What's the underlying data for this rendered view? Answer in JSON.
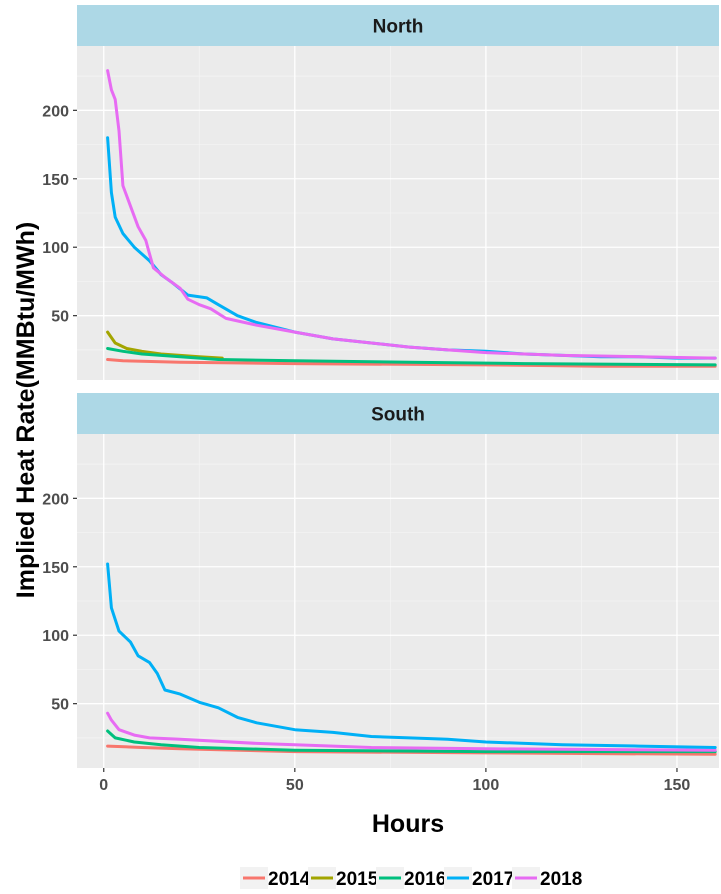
{
  "chart_data": {
    "type": "line",
    "xlabel": "Hours",
    "ylabel": "Implied Heat Rate(MMBtu/MWh)",
    "xlim": [
      -7,
      161
    ],
    "ylim": [
      3,
      247
    ],
    "x_ticks": [
      0,
      50,
      100,
      150
    ],
    "y_ticks": [
      50,
      100,
      150,
      200
    ],
    "grid": true,
    "legend_position": "bottom",
    "series_styles": [
      {
        "name": "2014",
        "color": "#f8766d"
      },
      {
        "name": "2015",
        "color": "#a3a500"
      },
      {
        "name": "2016",
        "color": "#00bf7d"
      },
      {
        "name": "2017",
        "color": "#00b0f6"
      },
      {
        "name": "2018",
        "color": "#e76bf3"
      }
    ],
    "panels": [
      {
        "strip": "North",
        "series": [
          {
            "name": "2014",
            "points": [
              [
                1,
                18
              ],
              [
                5,
                17
              ],
              [
                20,
                16
              ],
              [
                50,
                15
              ],
              [
                100,
                14
              ],
              [
                130,
                13
              ],
              [
                160,
                13
              ]
            ]
          },
          {
            "name": "2015",
            "points": [
              [
                1,
                38
              ],
              [
                3,
                30
              ],
              [
                6,
                26
              ],
              [
                10,
                24
              ],
              [
                15,
                22
              ],
              [
                20,
                21
              ],
              [
                25,
                20
              ],
              [
                31,
                19
              ]
            ]
          },
          {
            "name": "2016",
            "points": [
              [
                1,
                26
              ],
              [
                5,
                24
              ],
              [
                10,
                22
              ],
              [
                20,
                20
              ],
              [
                30,
                18
              ],
              [
                50,
                17
              ],
              [
                80,
                16
              ],
              [
                110,
                15
              ],
              [
                160,
                14
              ]
            ]
          },
          {
            "name": "2017",
            "points": [
              [
                1,
                180
              ],
              [
                2,
                140
              ],
              [
                3,
                122
              ],
              [
                5,
                110
              ],
              [
                8,
                100
              ],
              [
                12,
                90
              ],
              [
                15,
                80
              ],
              [
                18,
                74
              ],
              [
                22,
                65
              ],
              [
                27,
                63
              ],
              [
                30,
                58
              ],
              [
                35,
                50
              ],
              [
                40,
                45
              ],
              [
                50,
                38
              ],
              [
                60,
                33
              ],
              [
                70,
                30
              ],
              [
                80,
                27
              ],
              [
                90,
                25
              ],
              [
                100,
                24
              ],
              [
                110,
                22
              ],
              [
                120,
                21
              ],
              [
                130,
                20
              ],
              [
                140,
                20
              ],
              [
                150,
                19
              ],
              [
                160,
                19
              ]
            ]
          },
          {
            "name": "2018",
            "points": [
              [
                1,
                229
              ],
              [
                2,
                215
              ],
              [
                3,
                208
              ],
              [
                4,
                185
              ],
              [
                5,
                145
              ],
              [
                7,
                130
              ],
              [
                9,
                115
              ],
              [
                11,
                105
              ],
              [
                12,
                95
              ],
              [
                13,
                85
              ],
              [
                16,
                78
              ],
              [
                20,
                70
              ],
              [
                22,
                62
              ],
              [
                25,
                58
              ],
              [
                28,
                55
              ],
              [
                32,
                48
              ],
              [
                40,
                43
              ],
              [
                50,
                38
              ],
              [
                60,
                33
              ],
              [
                70,
                30
              ],
              [
                80,
                27
              ],
              [
                100,
                23
              ],
              [
                120,
                21
              ],
              [
                140,
                20
              ],
              [
                160,
                19
              ]
            ]
          }
        ]
      },
      {
        "strip": "South",
        "series": [
          {
            "name": "2014",
            "points": [
              [
                1,
                19
              ],
              [
                10,
                18
              ],
              [
                20,
                17
              ],
              [
                50,
                15
              ],
              [
                100,
                14
              ],
              [
                160,
                13
              ]
            ]
          },
          {
            "name": "2016",
            "points": [
              [
                1,
                30
              ],
              [
                3,
                25
              ],
              [
                8,
                22
              ],
              [
                15,
                20
              ],
              [
                25,
                18
              ],
              [
                50,
                16
              ],
              [
                100,
                15
              ],
              [
                160,
                15
              ]
            ]
          },
          {
            "name": "2018",
            "points": [
              [
                1,
                43
              ],
              [
                2,
                38
              ],
              [
                4,
                31
              ],
              [
                8,
                27
              ],
              [
                12,
                25
              ],
              [
                20,
                24
              ],
              [
                40,
                21
              ],
              [
                70,
                18
              ],
              [
                100,
                17
              ],
              [
                160,
                16
              ]
            ]
          },
          {
            "name": "2017",
            "points": [
              [
                1,
                152
              ],
              [
                2,
                120
              ],
              [
                4,
                103
              ],
              [
                7,
                95
              ],
              [
                9,
                85
              ],
              [
                12,
                80
              ],
              [
                14,
                72
              ],
              [
                16,
                60
              ],
              [
                20,
                57
              ],
              [
                25,
                51
              ],
              [
                30,
                47
              ],
              [
                35,
                40
              ],
              [
                40,
                36
              ],
              [
                50,
                31
              ],
              [
                60,
                29
              ],
              [
                70,
                26
              ],
              [
                80,
                25
              ],
              [
                90,
                24
              ],
              [
                100,
                22
              ],
              [
                120,
                20
              ],
              [
                140,
                19
              ],
              [
                160,
                18
              ]
            ]
          }
        ]
      }
    ]
  }
}
